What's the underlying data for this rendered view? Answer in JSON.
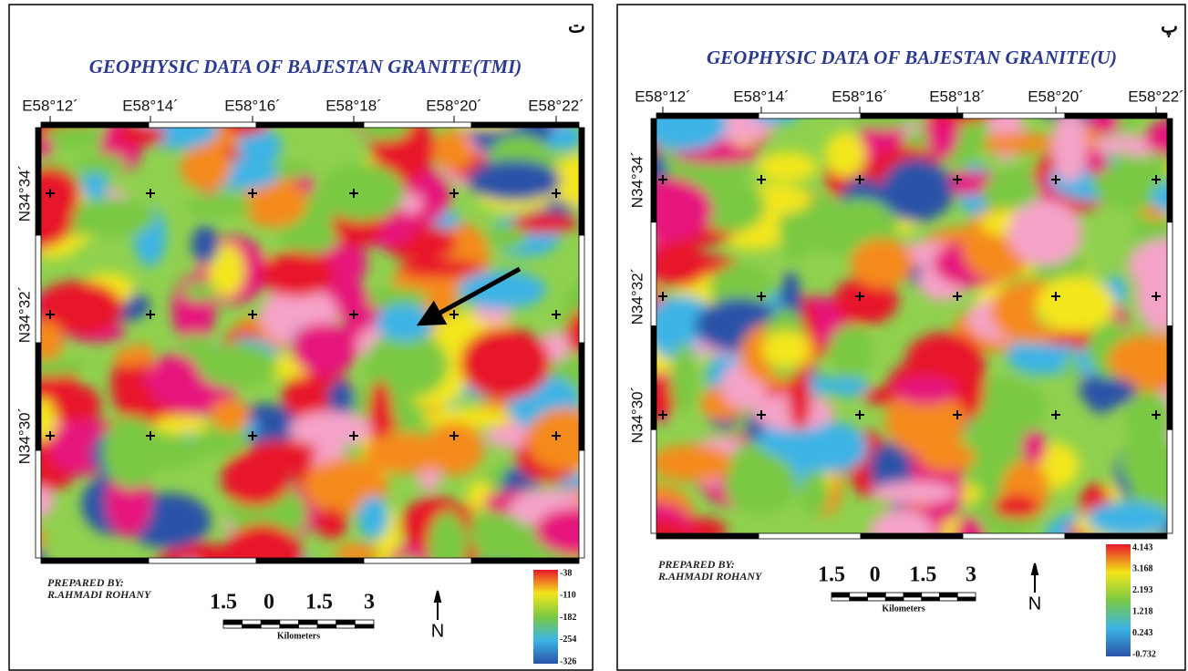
{
  "panels": [
    {
      "tag": "ت",
      "title": "GEOPHYSIC DATA OF BAJESTAN GRANITE(TMI)",
      "lon_labels": [
        "E58°12´",
        "E58°14´",
        "E58°16´",
        "E58°18´",
        "E58°20´",
        "E58°22´"
      ],
      "lat_labels": [
        "N34°34´",
        "N34°32´",
        "N34°30´"
      ],
      "prepared_by": "PREPARED BY:",
      "author": "R.AHMADI ROHANY",
      "scale_labels": [
        "1.5",
        "0",
        "1.5",
        "3"
      ],
      "scale_unit": "Kilometers",
      "north": "N",
      "legend": [
        "-38",
        "-110",
        "-182",
        "-254",
        "-326"
      ]
    },
    {
      "tag": "پ",
      "title": "GEOPHYSIC DATA OF BAJESTAN GRANITE(U)",
      "lon_labels": [
        "E58°12´",
        "E58°14´",
        "E58°16´",
        "E58°18´",
        "E58°20´",
        "E58°22´"
      ],
      "lat_labels": [
        "N34°34´",
        "N34°32´",
        "N34°30´"
      ],
      "prepared_by": "PREPARED BY:",
      "author": "R.AHMADI ROHANY",
      "scale_labels": [
        "1.5",
        "0",
        "1.5",
        "3"
      ],
      "scale_unit": "Kilometers",
      "north": "N",
      "legend": [
        "4.143",
        "3.168",
        "2.193",
        "1.218",
        "0.243",
        "-0.732"
      ]
    }
  ]
}
